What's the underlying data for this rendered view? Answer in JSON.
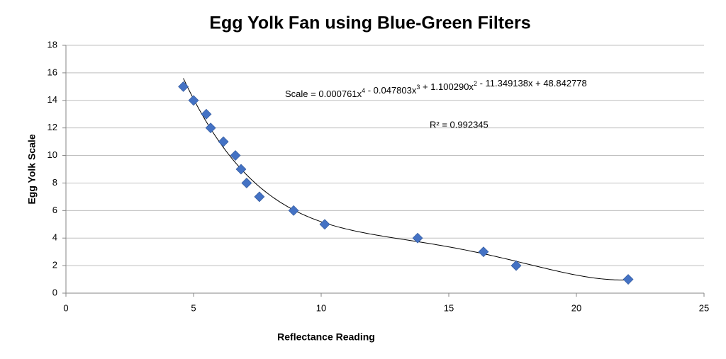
{
  "chart_data": {
    "type": "scatter",
    "title": "Egg Yolk Fan using Blue-Green Filters",
    "x_label": "Reflectance Reading",
    "y_label": "Egg Yolk Scale",
    "color": "#4472c4",
    "grid": true,
    "xlim": [
      0,
      25
    ],
    "xticks": [
      0,
      5,
      10,
      15,
      20,
      25
    ],
    "ylim": [
      0,
      18
    ],
    "yticks": [
      0,
      2,
      4,
      6,
      8,
      10,
      12,
      14,
      16,
      18
    ],
    "x": [
      4.6,
      5.0,
      5.5,
      5.67,
      6.17,
      6.64,
      6.86,
      7.08,
      7.58,
      8.92,
      10.14,
      13.78,
      16.36,
      17.64,
      22.03
    ],
    "values": [
      15,
      14,
      13,
      12,
      11,
      10,
      9,
      8,
      7,
      6,
      5,
      4,
      3,
      2,
      1
    ],
    "trendline": {
      "type": "polynomial",
      "lhs": "Scale = ",
      "terms": [
        {
          "value": 0.000761,
          "label": "0.000761x",
          "power": 4
        },
        {
          "value": -0.047803,
          "label": " - 0.047803x",
          "power": 3
        },
        {
          "value": 1.10029,
          "label": " + 1.100290x",
          "power": 2
        },
        {
          "value": -11.349138,
          "label": " - 11.349138x",
          "power": 1
        },
        {
          "value": 48.842778,
          "label": " + 48.842778",
          "power": 0
        }
      ],
      "r_squared": {
        "value": 0.992345,
        "label": "R² = 0.992345"
      }
    }
  }
}
